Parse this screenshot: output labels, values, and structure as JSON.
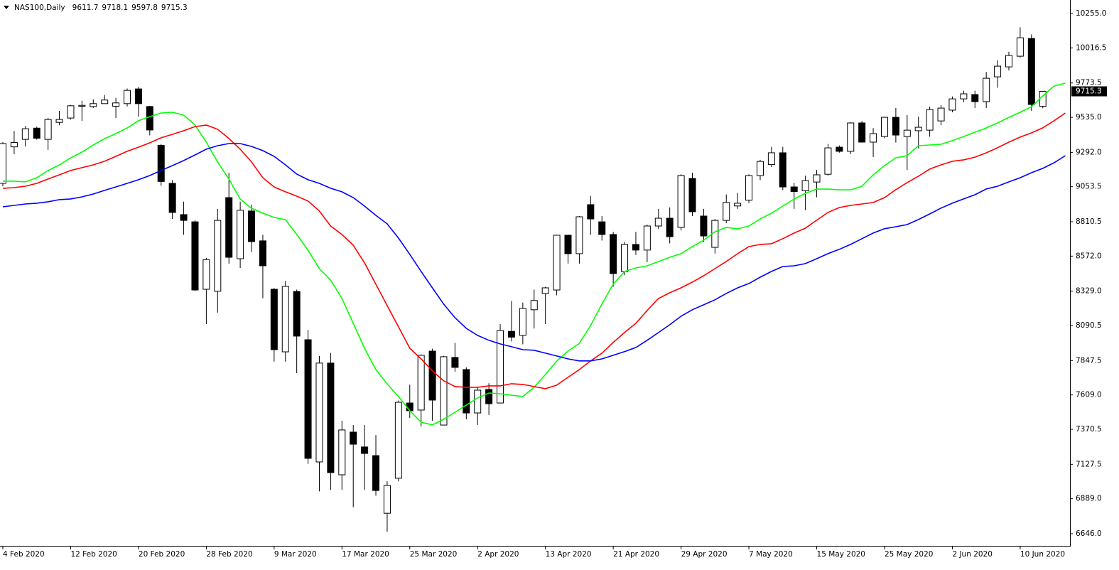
{
  "chart_data": {
    "type": "candlestick",
    "title": "NAS100,Daily",
    "categories": [
      "4 Feb 2020",
      null,
      null,
      null,
      null,
      null,
      "12 Feb 2020",
      null,
      null,
      null,
      null,
      null,
      "20 Feb 2020",
      null,
      null,
      null,
      null,
      null,
      "28 Feb 2020",
      null,
      null,
      null,
      null,
      null,
      "9 Mar 2020",
      null,
      null,
      null,
      null,
      null,
      "17 Mar 2020",
      null,
      null,
      null,
      null,
      null,
      "25 Mar 2020",
      null,
      null,
      null,
      null,
      null,
      "2 Apr 2020",
      null,
      null,
      null,
      null,
      null,
      "13 Apr 2020",
      null,
      null,
      null,
      null,
      null,
      "21 Apr 2020",
      null,
      null,
      null,
      null,
      null,
      "29 Apr 2020",
      null,
      null,
      null,
      null,
      null,
      "7 May 2020",
      null,
      null,
      null,
      null,
      null,
      "15 May 2020",
      null,
      null,
      null,
      null,
      null,
      "25 May 2020",
      null,
      null,
      null,
      null,
      null,
      "2 Jun 2020",
      null,
      null,
      null,
      null,
      null,
      "10 Jun 2020",
      null,
      null,
      null,
      null
    ],
    "open": [
      9077,
      9330,
      9382,
      9460,
      9382,
      9500,
      9530,
      9612,
      9610,
      9630,
      9612,
      9630,
      9732,
      9610,
      9340,
      9077,
      8860,
      8810,
      8342,
      8328,
      8978,
      8554,
      8885,
      8678,
      8342,
      7908,
      8327,
      7992,
      7144,
      7830,
      7055,
      7351,
      7248,
      7188,
      6788,
      7031,
      7553,
      7504,
      7913,
      7400,
      7869,
      7785,
      7484,
      7647,
      7553,
      8050,
      8022,
      8200,
      8313,
      8337,
      8717,
      8589,
      8929,
      8810,
      8722,
      8465,
      8653,
      8614,
      8781,
      8835,
      8771,
      9111,
      8850,
      8633,
      8820,
      8920,
      8960,
      9131,
      9207,
      9289,
      9052,
      9025,
      9086,
      9140,
      9328,
      9299,
      9496,
      9363,
      9402,
      9535,
      9402,
      9442,
      9446,
      9510,
      9585,
      9663,
      9693,
      9644,
      9816,
      9885,
      9959,
      10082,
      9611.7,
      null,
      null
    ],
    "high": [
      9363,
      9440,
      9475,
      9470,
      9530,
      9580,
      9620,
      9650,
      9660,
      9690,
      9670,
      9735,
      9745,
      9615,
      9350,
      9100,
      8950,
      8820,
      8560,
      8900,
      9150,
      8950,
      8930,
      8720,
      8350,
      8400,
      8340,
      8060,
      7880,
      7900,
      7430,
      7400,
      7400,
      7330,
      7010,
      7570,
      7680,
      7890,
      7930,
      7880,
      7970,
      7800,
      7660,
      7690,
      8100,
      8260,
      8250,
      8340,
      8360,
      8720,
      8720,
      8850,
      8990,
      8850,
      8740,
      8670,
      8740,
      8790,
      8900,
      8910,
      9140,
      9150,
      8900,
      8830,
      9000,
      9010,
      9140,
      9240,
      9330,
      9330,
      9080,
      9130,
      9170,
      9350,
      9340,
      9500,
      9510,
      9460,
      9540,
      9600,
      9550,
      9540,
      9610,
      9620,
      9680,
      9720,
      9720,
      9850,
      9930,
      9990,
      10160,
      10110,
      9718.1,
      null,
      null
    ],
    "low": [
      9057,
      9280,
      9333,
      9380,
      9310,
      9480,
      9520,
      9510,
      9600,
      9630,
      9530,
      9610,
      9540,
      9410,
      9060,
      8830,
      8720,
      8330,
      8100,
      8180,
      8520,
      8490,
      8600,
      8280,
      7840,
      7840,
      7760,
      7130,
      6940,
      6950,
      6950,
      6830,
      6950,
      6910,
      6660,
      7010,
      7450,
      7390,
      7430,
      7400,
      7770,
      7440,
      7400,
      7470,
      7550,
      7980,
      7960,
      8070,
      8100,
      8300,
      8520,
      8520,
      8720,
      8680,
      8360,
      8440,
      8580,
      8530,
      8760,
      8660,
      8750,
      8850,
      8670,
      8590,
      8800,
      8900,
      8940,
      9100,
      9190,
      9030,
      8900,
      8890,
      8980,
      9130,
      9290,
      9280,
      9360,
      9260,
      9390,
      9360,
      9170,
      9320,
      9400,
      9480,
      9570,
      9640,
      9600,
      9600,
      9740,
      9860,
      9950,
      9580,
      9597.8,
      null,
      null
    ],
    "close": [
      9353,
      9360,
      9456,
      9390,
      9520,
      9520,
      9615,
      9618,
      9630,
      9655,
      9635,
      9722,
      9630,
      9447,
      9090,
      8875,
      8820,
      8337,
      8548,
      8820,
      8564,
      8890,
      8673,
      8505,
      7923,
      8362,
      8017,
      7169,
      7830,
      7070,
      7366,
      7267,
      7203,
      6946,
      6981,
      7558,
      7499,
      7884,
      7573,
      7874,
      7800,
      7484,
      7642,
      7548,
      8056,
      8010,
      8209,
      8264,
      8352,
      8717,
      8589,
      8845,
      8830,
      8722,
      8451,
      8653,
      8614,
      8781,
      8835,
      8707,
      9131,
      8880,
      8712,
      8820,
      8944,
      8939,
      9131,
      9229,
      9289,
      9052,
      9020,
      9096,
      9136,
      9323,
      9299,
      9496,
      9363,
      9422,
      9535,
      9412,
      9446,
      9466,
      9589,
      9599,
      9663,
      9698,
      9644,
      9806,
      9890,
      9964,
      10087,
      9624,
      9715.3,
      null,
      null
    ],
    "up_color": "#ffffff",
    "down_color": "#000000",
    "wick_color": "#000000",
    "series": [
      {
        "color": "#00ff00",
        "values": [
          9092,
          9092,
          9087,
          9116,
          9165,
          9205,
          9254,
          9294,
          9343,
          9387,
          9422,
          9461,
          9511,
          9540,
          9565,
          9570,
          9550,
          9481,
          9363,
          9225,
          9106,
          8968,
          8904,
          8870,
          8840,
          8825,
          8722,
          8613,
          8485,
          8406,
          8278,
          8106,
          7933,
          7785,
          7686,
          7598,
          7499,
          7420,
          7401,
          7440,
          7489,
          7539,
          7588,
          7622,
          7617,
          7607,
          7598,
          7662,
          7751,
          7844,
          7913,
          7967,
          8091,
          8239,
          8377,
          8465,
          8490,
          8505,
          8534,
          8564,
          8589,
          8638,
          8682,
          8741,
          8771,
          8761,
          8781,
          8830,
          8870,
          8919,
          8968,
          9008,
          9037,
          9037,
          9032,
          9032,
          9057,
          9136,
          9200,
          9254,
          9269,
          9338,
          9343,
          9348,
          9373,
          9402,
          9432,
          9461,
          9496,
          9535,
          9570,
          9609,
          9683,
          9752,
          9772
        ]
      },
      {
        "color": "#ff0000",
        "values": [
          9043,
          9047,
          9057,
          9077,
          9107,
          9136,
          9166,
          9186,
          9205,
          9230,
          9264,
          9299,
          9328,
          9358,
          9393,
          9417,
          9442,
          9471,
          9481,
          9452,
          9388,
          9314,
          9225,
          9116,
          9052,
          9018,
          8988,
          8954,
          8885,
          8781,
          8722,
          8648,
          8525,
          8377,
          8229,
          8081,
          7933,
          7859,
          7776,
          7707,
          7667,
          7662,
          7662,
          7672,
          7672,
          7687,
          7682,
          7667,
          7652,
          7677,
          7731,
          7785,
          7845,
          7899,
          7973,
          8042,
          8106,
          8195,
          8278,
          8318,
          8352,
          8392,
          8436,
          8485,
          8535,
          8589,
          8638,
          8653,
          8658,
          8693,
          8732,
          8766,
          8821,
          8875,
          8909,
          8924,
          8934,
          8944,
          8978,
          9033,
          9082,
          9126,
          9176,
          9205,
          9230,
          9240,
          9259,
          9289,
          9324,
          9363,
          9398,
          9427,
          9462,
          9511,
          9565
        ]
      },
      {
        "color": "#0000ff",
        "values": [
          8914,
          8924,
          8934,
          8939,
          8949,
          8964,
          8969,
          8983,
          9003,
          9028,
          9052,
          9077,
          9102,
          9131,
          9166,
          9200,
          9235,
          9274,
          9314,
          9338,
          9353,
          9353,
          9333,
          9304,
          9264,
          9205,
          9141,
          9102,
          9077,
          9043,
          9018,
          8978,
          8919,
          8855,
          8796,
          8697,
          8584,
          8466,
          8352,
          8239,
          8145,
          8071,
          8022,
          7988,
          7963,
          7943,
          7923,
          7919,
          7899,
          7879,
          7859,
          7845,
          7845,
          7859,
          7884,
          7909,
          7938,
          7988,
          8042,
          8096,
          8155,
          8200,
          8234,
          8269,
          8313,
          8352,
          8382,
          8426,
          8466,
          8500,
          8505,
          8520,
          8554,
          8589,
          8619,
          8653,
          8693,
          8732,
          8762,
          8776,
          8791,
          8826,
          8865,
          8905,
          8939,
          8969,
          8998,
          9038,
          9057,
          9087,
          9116,
          9151,
          9181,
          9220,
          9269
        ]
      }
    ],
    "ylim": [
      6562,
      10349
    ],
    "yticks": [
      {
        "value": 6646,
        "label": "6646.0"
      },
      {
        "value": 6889,
        "label": "6889.0"
      },
      7127.5,
      7370.5,
      {
        "value": 7609,
        "label": "7609.0"
      },
      7847.5,
      8090.5,
      {
        "value": 8329,
        "label": "8329.0"
      },
      {
        "value": 8572,
        "label": "8572.0"
      },
      8810.5,
      9053.5,
      {
        "value": 9292,
        "label": "9292.0"
      },
      {
        "value": 9535,
        "label": "9535.0"
      },
      9773.5,
      10016.5,
      {
        "value": 10255,
        "label": "10255.0"
      }
    ],
    "grid": false
  }
}
